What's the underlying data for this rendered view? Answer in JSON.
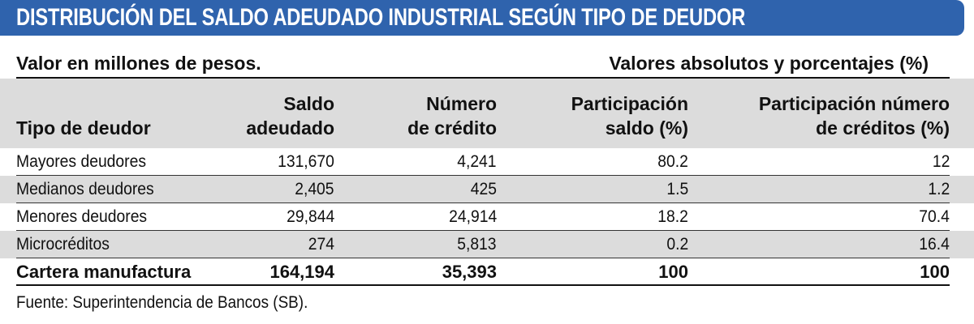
{
  "title": "DISTRIBUCIÓN DEL SALDO ADEUDADO INDUSTRIAL SEGÚN TIPO DE DEUDOR",
  "subtitle_left": "Valor en millones de pesos.",
  "subtitle_right": "Valores absolutos y porcentajes (%)",
  "headers": [
    [
      "Tipo de deudor"
    ],
    [
      "Saldo",
      "adeudado"
    ],
    [
      "Número",
      "de crédito"
    ],
    [
      "Participación",
      "saldo (%)"
    ],
    [
      "Participación número",
      "de créditos (%)"
    ]
  ],
  "rows": [
    [
      "Mayores deudores",
      "131,670",
      "4,241",
      "80.2",
      "12"
    ],
    [
      "Medianos deudores",
      "2,405",
      "425",
      "1.5",
      "1.2"
    ],
    [
      "Menores deudores",
      "29,844",
      "24,914",
      "18.2",
      "70.4"
    ],
    [
      "Microcréditos",
      "274",
      "5,813",
      "0.2",
      "16.4"
    ]
  ],
  "total": [
    "Cartera manufactura",
    "164,194",
    "35,393",
    "100",
    "100"
  ],
  "source": "Fuente: Superintendencia de Bancos (SB).",
  "colors": {
    "title_bar": "#2f63ad",
    "band_gray": "#dcdcdc"
  }
}
